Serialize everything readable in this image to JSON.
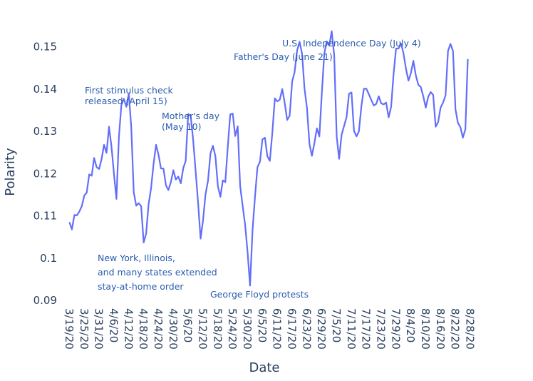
{
  "chart_data": {
    "type": "line",
    "title": "",
    "xlabel": "Date",
    "ylabel": "Polarity",
    "ylim": [
      0.09,
      0.155
    ],
    "grid": false,
    "line_color": "#636efa",
    "text_color": "#2a3f5f",
    "annotation_color": "#2a5db0",
    "start_date": "3/19/20",
    "yticks": [
      {
        "value": 0.09,
        "label": "0.09"
      },
      {
        "value": 0.1,
        "label": "0.1"
      },
      {
        "value": 0.11,
        "label": "0.11"
      },
      {
        "value": 0.12,
        "label": "0.12"
      },
      {
        "value": 0.13,
        "label": "0.13"
      },
      {
        "value": 0.14,
        "label": "0.14"
      },
      {
        "value": 0.15,
        "label": "0.15"
      }
    ],
    "xticks": [
      {
        "day": 0,
        "label": "3/19/20"
      },
      {
        "day": 6,
        "label": "3/25/20"
      },
      {
        "day": 12,
        "label": "3/31/20"
      },
      {
        "day": 18,
        "label": "4/6/20"
      },
      {
        "day": 24,
        "label": "4/12/20"
      },
      {
        "day": 30,
        "label": "4/18/20"
      },
      {
        "day": 36,
        "label": "4/24/20"
      },
      {
        "day": 42,
        "label": "4/30/20"
      },
      {
        "day": 48,
        "label": "5/6/20"
      },
      {
        "day": 54,
        "label": "5/12/20"
      },
      {
        "day": 60,
        "label": "5/18/20"
      },
      {
        "day": 66,
        "label": "5/24/20"
      },
      {
        "day": 72,
        "label": "5/30/20"
      },
      {
        "day": 78,
        "label": "6/5/20"
      },
      {
        "day": 84,
        "label": "6/11/20"
      },
      {
        "day": 90,
        "label": "6/17/20"
      },
      {
        "day": 96,
        "label": "6/23/20"
      },
      {
        "day": 102,
        "label": "6/29/20"
      },
      {
        "day": 108,
        "label": "7/5/20"
      },
      {
        "day": 114,
        "label": "7/11/20"
      },
      {
        "day": 120,
        "label": "7/17/20"
      },
      {
        "day": 126,
        "label": "7/23/20"
      },
      {
        "day": 132,
        "label": "7/29/20"
      },
      {
        "day": 138,
        "label": "8/4/20"
      },
      {
        "day": 144,
        "label": "8/10/20"
      },
      {
        "day": 150,
        "label": "8/16/20"
      },
      {
        "day": 156,
        "label": "8/22/20"
      },
      {
        "day": 162,
        "label": "8/28/20"
      }
    ],
    "series": [
      {
        "name": "Polarity",
        "x_day_start": 3,
        "values": [
          0.1085,
          0.1068,
          0.1102,
          0.1101,
          0.111,
          0.1123,
          0.1148,
          0.1155,
          0.1198,
          0.1195,
          0.1237,
          0.1215,
          0.1211,
          0.1235,
          0.1268,
          0.1249,
          0.1311,
          0.1263,
          0.12,
          0.114,
          0.1287,
          0.1362,
          0.1377,
          0.1358,
          0.1389,
          0.131,
          0.1156,
          0.1124,
          0.113,
          0.1123,
          0.1037,
          0.1058,
          0.1127,
          0.1165,
          0.1223,
          0.1268,
          0.1245,
          0.1212,
          0.1212,
          0.1172,
          0.1161,
          0.118,
          0.1208,
          0.1186,
          0.1193,
          0.1177,
          0.1213,
          0.123,
          0.1341,
          0.1337,
          0.1279,
          0.1207,
          0.1131,
          0.1046,
          0.1089,
          0.1151,
          0.1183,
          0.1248,
          0.1266,
          0.1241,
          0.117,
          0.1145,
          0.1184,
          0.118,
          0.1264,
          0.134,
          0.1342,
          0.1289,
          0.1312,
          0.1171,
          0.1124,
          0.1079,
          0.1013,
          0.0935,
          0.1066,
          0.1146,
          0.1215,
          0.1228,
          0.1281,
          0.1285,
          0.1241,
          0.123,
          0.1297,
          0.1378,
          0.1371,
          0.1375,
          0.14,
          0.1368,
          0.1327,
          0.1337,
          0.1418,
          0.144,
          0.1491,
          0.1512,
          0.1484,
          0.1402,
          0.1355,
          0.127,
          0.1242,
          0.1272,
          0.1307,
          0.1288,
          0.1389,
          0.1484,
          0.1513,
          0.1503,
          0.1537,
          0.148,
          0.1288,
          0.1235,
          0.1292,
          0.1313,
          0.1334,
          0.1389,
          0.1392,
          0.1301,
          0.1288,
          0.13,
          0.136,
          0.1401,
          0.1401,
          0.1388,
          0.1374,
          0.1361,
          0.1365,
          0.1383,
          0.1366,
          0.1364,
          0.1368,
          0.1333,
          0.1358,
          0.1435,
          0.1496,
          0.1496,
          0.1508,
          0.1485,
          0.1448,
          0.142,
          0.1438,
          0.1467,
          0.1432,
          0.141,
          0.1405,
          0.1383,
          0.1356,
          0.1382,
          0.1393,
          0.1386,
          0.1311,
          0.1322,
          0.1356,
          0.1368,
          0.1385,
          0.149,
          0.1507,
          0.149,
          0.1352,
          0.132,
          0.131,
          0.1285,
          0.1305,
          0.1471
        ]
      }
    ],
    "annotations": [
      {
        "id": "stimulus",
        "lines": [
          "First stimulus check",
          "released (April 15)"
        ]
      },
      {
        "id": "mothers-day",
        "lines": [
          "Mother's day",
          "(May 10)"
        ]
      },
      {
        "id": "fathers-day",
        "lines": [
          "Father's Day (June 21)"
        ]
      },
      {
        "id": "independence-day",
        "lines": [
          "U.S. Independence Day (July 4)"
        ]
      },
      {
        "id": "stay-at-home",
        "lines": [
          "New York, Illinois,",
          "and many states extended",
          "stay-at-home order"
        ]
      },
      {
        "id": "george-floyd",
        "lines": [
          "George Floyd protests"
        ]
      }
    ]
  }
}
